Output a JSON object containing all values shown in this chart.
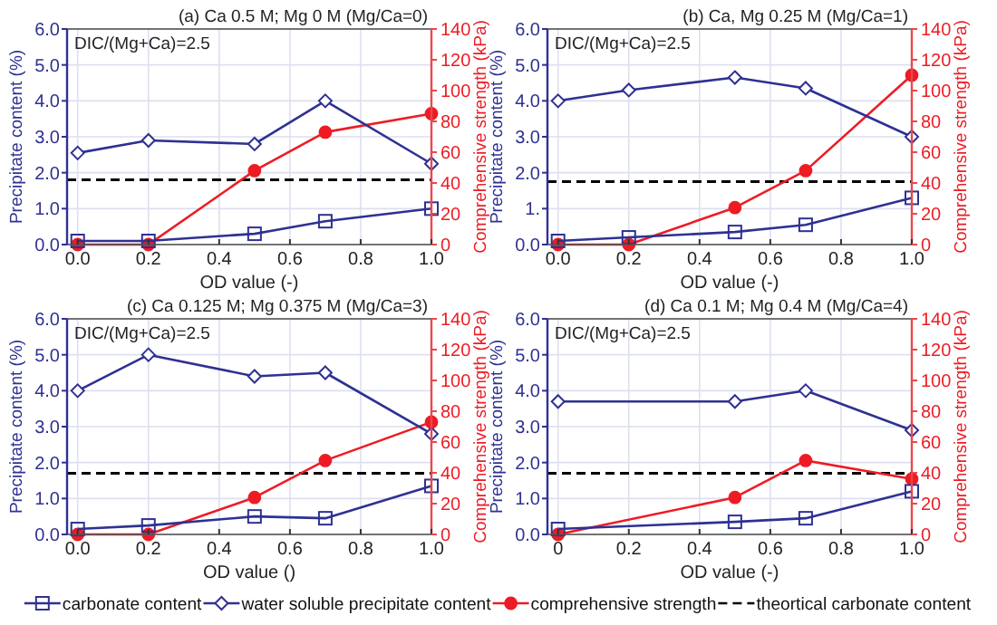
{
  "chart_data": [
    {
      "type": "line",
      "title": "(a) Ca 0.5 M; Mg 0 M (Mg/Ca=0)",
      "xlabel": "OD value (-)",
      "ylabel": "Precipitate content (%)",
      "y2label": "Comprehensive strength (kPa)",
      "annotations": [
        "DIC/(Mg+Ca)=2.5"
      ],
      "x": [
        0,
        0.2,
        0.5,
        0.7,
        1.0
      ],
      "xlim": [
        -0.03,
        1.0
      ],
      "xticks": [
        {
          "value": 0,
          "label": "0.0"
        },
        {
          "value": 0.2,
          "label": "0.2"
        },
        {
          "value": 0.4,
          "label": "0.4"
        },
        {
          "value": 0.6,
          "label": "0.6"
        },
        {
          "value": 0.8,
          "label": "0.8"
        },
        {
          "value": 1,
          "label": "1.0"
        }
      ],
      "ylim": [
        0,
        6
      ],
      "yticks": [
        {
          "value": 0,
          "label": "0.0"
        },
        {
          "value": 1,
          "label": "1.0"
        },
        {
          "value": 2,
          "label": "2.0"
        },
        {
          "value": 3,
          "label": "3.0"
        },
        {
          "value": 4,
          "label": "4.0"
        },
        {
          "value": 5,
          "label": "5.0"
        },
        {
          "value": 6,
          "label": "6.0"
        }
      ],
      "y2lim": [
        0,
        140
      ],
      "y2ticks": [
        0,
        20,
        40,
        60,
        80,
        100,
        120,
        140
      ],
      "grid": true,
      "legend": "bottom",
      "series": [
        {
          "name": "carbonate content",
          "color": "#2e3192",
          "marker": "square",
          "values": [
            0.1,
            0.1,
            0.3,
            0.65,
            1.0
          ]
        },
        {
          "name": "water soluble precipitate content",
          "color": "#2e3192",
          "marker": "diamond",
          "values": [
            2.55,
            2.9,
            2.8,
            4.0,
            2.25
          ]
        },
        {
          "name": "comprehensive strength",
          "color": "#ed1c24",
          "marker": "circle",
          "axis": "y2",
          "values": [
            0,
            0,
            48,
            73,
            85
          ]
        }
      ],
      "ref_lines": [
        {
          "axis": "y",
          "value": 1.8,
          "label": "theortical carbonate content",
          "color": "#000000",
          "line_style": "dashed"
        }
      ]
    },
    {
      "type": "line",
      "title": "(b) Ca, Mg 0.25 M (Mg/Ca=1)",
      "xlabel": "OD value (-)",
      "ylabel": "Precipitate content (%)",
      "y2label": "Comprehensive strength (kPa)",
      "annotations": [
        "DIC/(Mg+Ca)=2.5"
      ],
      "x": [
        0,
        0.2,
        0.5,
        0.7,
        1.0
      ],
      "xlim": [
        -0.03,
        1.0
      ],
      "xticks": [
        {
          "value": 0,
          "label": "0.0"
        },
        {
          "value": 0.2,
          "label": "0.2"
        },
        {
          "value": 0.4,
          "label": "0.4"
        },
        {
          "value": 0.6,
          "label": "0.6"
        },
        {
          "value": 0.8,
          "label": "0.8"
        },
        {
          "value": 1,
          "label": "1.0"
        }
      ],
      "ylim": [
        0,
        6
      ],
      "yticks": [
        {
          "value": 0,
          "label": "0.0"
        },
        {
          "value": 1,
          "label": "1."
        },
        {
          "value": 2,
          "label": "2.0"
        },
        {
          "value": 3,
          "label": "3.0"
        },
        {
          "value": 4,
          "label": "4.0"
        },
        {
          "value": 5,
          "label": "5.0"
        },
        {
          "value": 6,
          "label": "6.0"
        }
      ],
      "y2lim": [
        0,
        140
      ],
      "y2ticks": [
        0,
        20,
        40,
        60,
        80,
        100,
        120,
        140
      ],
      "grid": true,
      "series": [
        {
          "color": "#2e3192",
          "marker": "square",
          "values": [
            0.1,
            0.2,
            0.35,
            0.55,
            1.3
          ]
        },
        {
          "color": "#2e3192",
          "marker": "diamond",
          "values": [
            4.0,
            4.3,
            4.65,
            4.35,
            3.0
          ]
        },
        {
          "color": "#ed1c24",
          "marker": "circle",
          "axis": "y2",
          "values": [
            0,
            0,
            24,
            48,
            110
          ]
        }
      ],
      "ref_lines": [
        {
          "axis": "y",
          "value": 1.75,
          "color": "#000000",
          "line_style": "dashed"
        }
      ]
    },
    {
      "type": "line",
      "title": "(c) Ca 0.125 M; Mg 0.375 M (Mg/Ca=3)",
      "xlabel": "OD value ()",
      "ylabel": "Precipitate content (%)",
      "y2label": "Comprehensive strength (kPa)",
      "annotations": [
        "DIC/(Mg+Ca)=2.5"
      ],
      "x": [
        0,
        0.2,
        0.5,
        0.7,
        1.0
      ],
      "xlim": [
        -0.03,
        1.0
      ],
      "xticks": [
        {
          "value": 0,
          "label": "0.0"
        },
        {
          "value": 0.2,
          "label": "0.2"
        },
        {
          "value": 0.4,
          "label": "0.4"
        },
        {
          "value": 0.6,
          "label": "0.6"
        },
        {
          "value": 0.8,
          "label": "0.8"
        },
        {
          "value": 1,
          "label": "1.0"
        }
      ],
      "ylim": [
        0,
        6
      ],
      "yticks": [
        {
          "value": 0,
          "label": "0.0"
        },
        {
          "value": 1,
          "label": "1.0"
        },
        {
          "value": 2,
          "label": "2.0"
        },
        {
          "value": 3,
          "label": "3.0"
        },
        {
          "value": 4,
          "label": "4.0"
        },
        {
          "value": 5,
          "label": "5.0"
        },
        {
          "value": 6,
          "label": "6.0"
        }
      ],
      "y2lim": [
        0,
        140
      ],
      "y2ticks": [
        0,
        20,
        40,
        60,
        80,
        100,
        120,
        140
      ],
      "grid": true,
      "series": [
        {
          "color": "#2e3192",
          "marker": "square",
          "values": [
            0.15,
            0.25,
            0.5,
            0.45,
            1.35
          ]
        },
        {
          "color": "#2e3192",
          "marker": "diamond",
          "values": [
            4.0,
            5.0,
            4.4,
            4.5,
            2.8
          ]
        },
        {
          "color": "#ed1c24",
          "marker": "circle",
          "axis": "y2",
          "values": [
            0,
            0,
            24,
            48,
            73
          ]
        }
      ],
      "ref_lines": [
        {
          "axis": "y",
          "value": 1.7,
          "color": "#000000",
          "line_style": "dashed"
        }
      ]
    },
    {
      "type": "line",
      "title": "(d) Ca 0.1 M; Mg 0.4 M (Mg/Ca=4)",
      "xlabel": "OD value (-)",
      "ylabel": "Precipitate content (%)",
      "y2label": "Comprehensive strength (kPa)",
      "annotations": [
        "DIC/(Mg+Ca)=2.5"
      ],
      "x": [
        0,
        0.5,
        0.7,
        1.0
      ],
      "xlim": [
        -0.03,
        1.0
      ],
      "xticks": [
        {
          "value": 0,
          "label": "0"
        },
        {
          "value": 0.2,
          "label": "0.2"
        },
        {
          "value": 0.4,
          "label": "0.4"
        },
        {
          "value": 0.6,
          "label": "0.6"
        },
        {
          "value": 0.8,
          "label": "0.8"
        },
        {
          "value": 1,
          "label": "1.0"
        }
      ],
      "ylim": [
        0,
        6
      ],
      "yticks": [
        {
          "value": 0,
          "label": "0.0"
        },
        {
          "value": 1,
          "label": "1.0"
        },
        {
          "value": 2,
          "label": "2.0"
        },
        {
          "value": 3,
          "label": "3.0"
        },
        {
          "value": 4,
          "label": "4.0"
        },
        {
          "value": 5,
          "label": "5.0"
        },
        {
          "value": 6,
          "label": "6.0"
        }
      ],
      "y2lim": [
        0,
        140
      ],
      "y2ticks": [
        0,
        20,
        40,
        60,
        80,
        100,
        120,
        140
      ],
      "grid": true,
      "series": [
        {
          "color": "#2e3192",
          "marker": "square",
          "values": [
            0.15,
            0.35,
            0.45,
            1.2
          ]
        },
        {
          "color": "#2e3192",
          "marker": "diamond",
          "values": [
            3.7,
            3.7,
            4.0,
            2.9
          ]
        },
        {
          "color": "#ed1c24",
          "marker": "circle",
          "axis": "y2",
          "values": [
            0,
            24,
            48,
            36
          ]
        }
      ],
      "ref_lines": [
        {
          "axis": "y",
          "value": 1.7,
          "color": "#000000",
          "line_style": "dashed"
        }
      ]
    }
  ]
}
